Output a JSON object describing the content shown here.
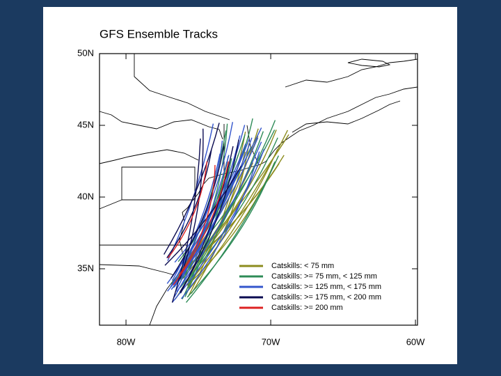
{
  "map": {
    "title": "GFS Ensemble Tracks",
    "lat_ticks": [
      {
        "value": 50,
        "label": "50N"
      },
      {
        "value": 45,
        "label": "45N"
      },
      {
        "value": 40,
        "label": "40N"
      },
      {
        "value": 35,
        "label": "35N"
      }
    ],
    "lon_ticks": [
      {
        "value": -80,
        "label": "80W"
      },
      {
        "value": -70,
        "label": "70W"
      },
      {
        "value": -60,
        "label": "60W"
      }
    ],
    "legend": [
      {
        "name": "Catskills: < 75 mm",
        "color": "#8c8c1e"
      },
      {
        "name": "Catskills: >= 75 mm, < 125 mm",
        "color": "#2e8b57"
      },
      {
        "name": "Catskills: >= 125 mm, < 175 mm",
        "color": "#3355cc"
      },
      {
        "name": "Catskills: >= 175 mm, < 200 mm",
        "color": "#0a0a50"
      },
      {
        "name": "Catskills: >= 200 mm",
        "color": "#dd2222"
      }
    ]
  }
}
